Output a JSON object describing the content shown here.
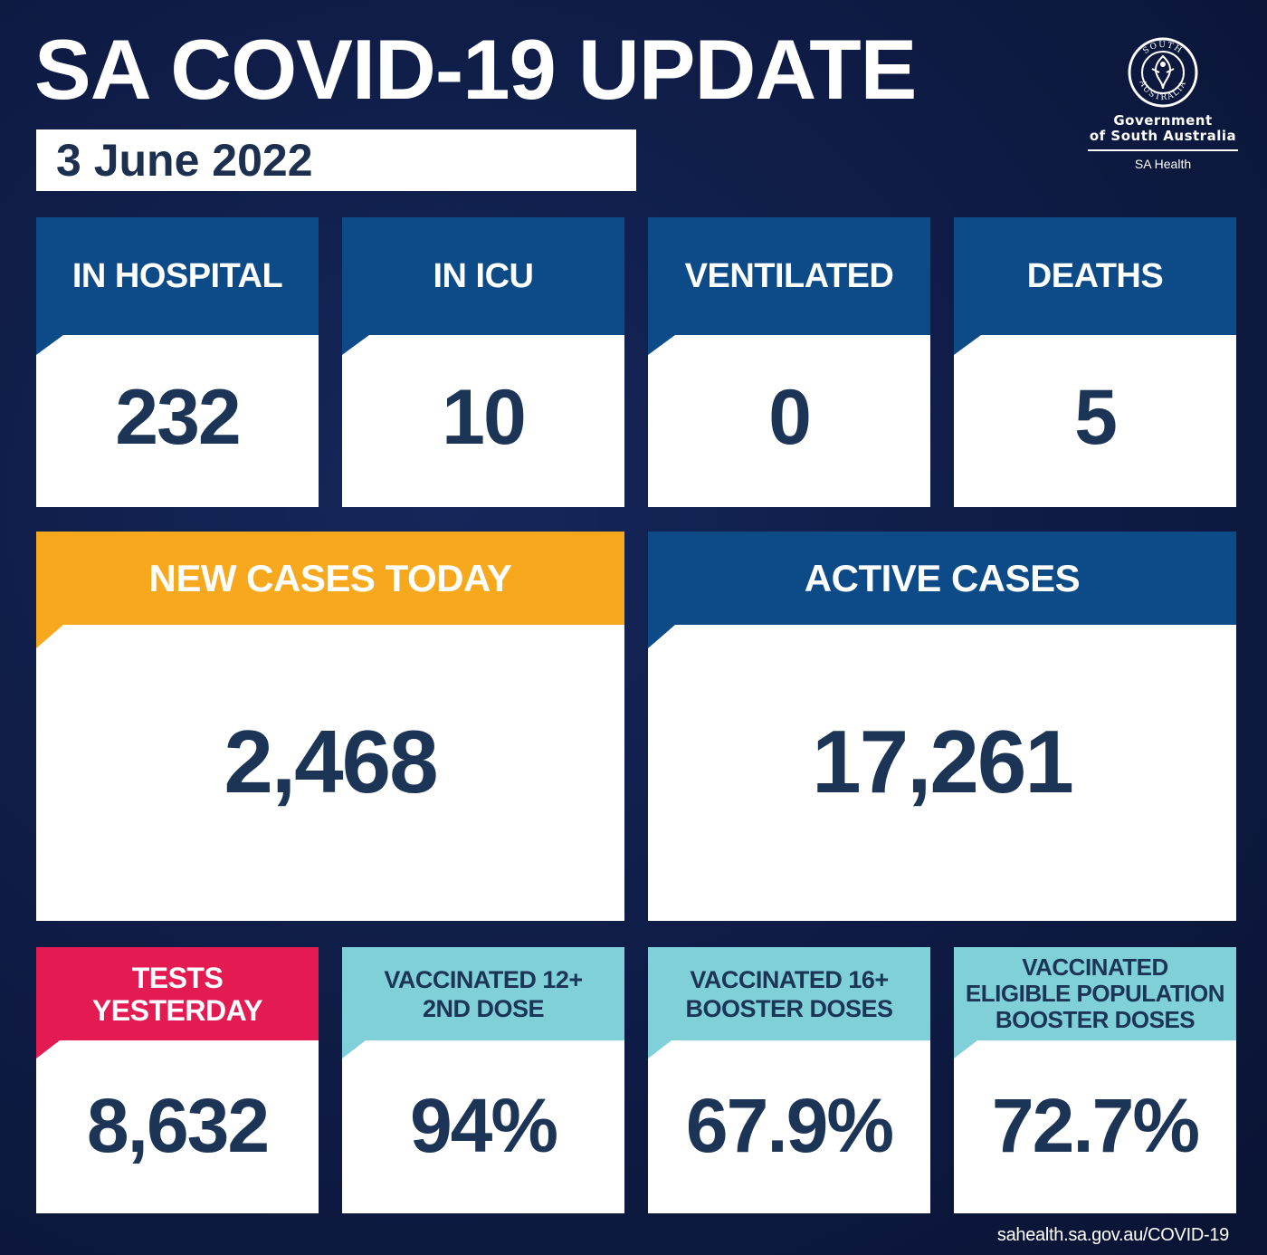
{
  "title": "SA COVID-19 UPDATE",
  "date": "3 June 2022",
  "logo": {
    "line1": "Government",
    "line2": "of South Australia",
    "department": "SA Health",
    "seal_text": "SOUTH AUSTRALIA"
  },
  "row1": [
    {
      "label": "IN HOSPITAL",
      "value": "232"
    },
    {
      "label": "IN ICU",
      "value": "10"
    },
    {
      "label": "VENTILATED",
      "value": "0"
    },
    {
      "label": "DEATHS",
      "value": "5"
    }
  ],
  "new_cases": {
    "label": "NEW CASES TODAY",
    "value": "2,468"
  },
  "active_cases": {
    "label": "ACTIVE CASES",
    "value": "17,261"
  },
  "row3": [
    {
      "line1": "TESTS",
      "line2": "YESTERDAY",
      "line3": "",
      "value": "8,632"
    },
    {
      "line1": "VACCINATED 12+",
      "line2": "2ND DOSE",
      "line3": "",
      "value": "94%"
    },
    {
      "line1": "VACCINATED 16+",
      "line2": "BOOSTER DOSES",
      "line3": "",
      "value": "67.9%"
    },
    {
      "line1": "VACCINATED",
      "line2": "ELIGIBLE POPULATION",
      "line3": "BOOSTER DOSES",
      "value": "72.7%"
    }
  ],
  "footer": "sahealth.sa.gov.au/COVID-19",
  "colors": {
    "background": "#0f1d48",
    "blue_header": "#0c4a88",
    "orange_header": "#f7a81c",
    "pink_header": "#e31b52",
    "teal_header": "#7fd0d9",
    "value_text": "#1c3455"
  }
}
